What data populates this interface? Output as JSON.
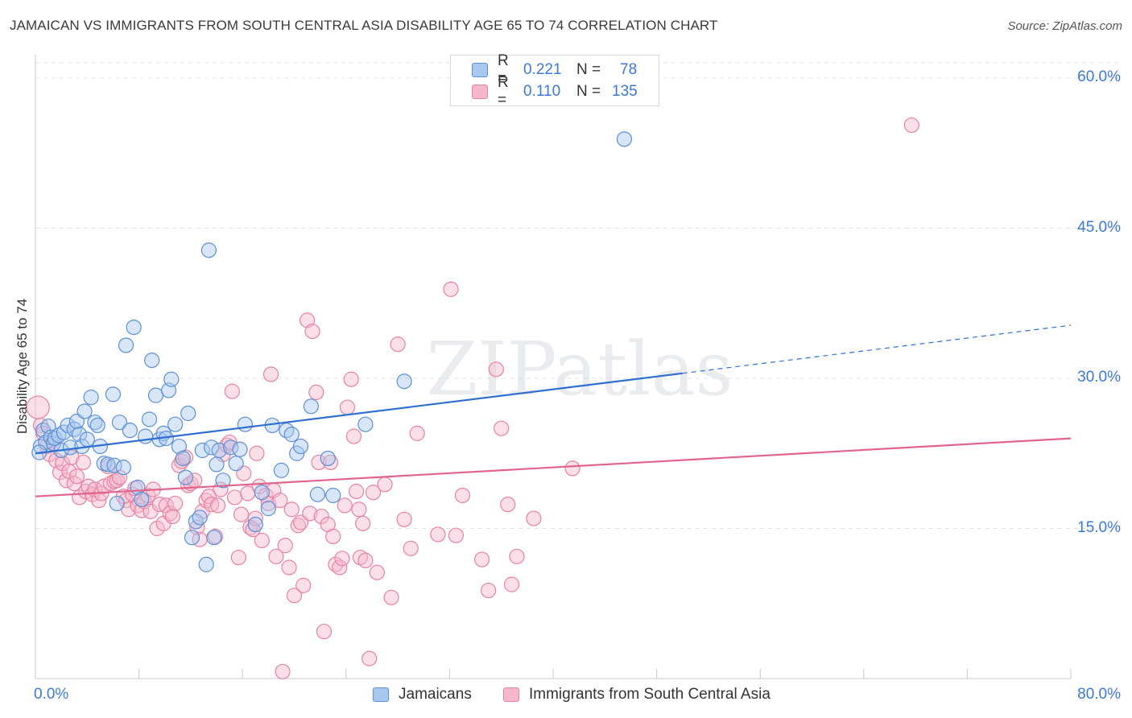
{
  "header": {
    "title": "JAMAICAN VS IMMIGRANTS FROM SOUTH CENTRAL ASIA DISABILITY AGE 65 TO 74 CORRELATION CHART",
    "source": "Source: ZipAtlas.com"
  },
  "watermark": "ZIPatlas",
  "legend": {
    "rows": [
      {
        "r_label": "R =",
        "r_value": "0.221",
        "n_label": "N =",
        "n_value": "78"
      },
      {
        "r_label": "R =",
        "r_value": "0.110",
        "n_label": "N =",
        "n_value": "135"
      }
    ]
  },
  "colors": {
    "blue_fill": "#a9c8f0",
    "blue_stroke": "#5b8fd6",
    "blue_line": "#2f6fd0",
    "pink_fill": "#f5b8cb",
    "pink_stroke": "#e8829f",
    "pink_line": "#e0648c",
    "tick_label": "#3c78d8",
    "grid": "#e3e3e3"
  },
  "chart_data": {
    "type": "scatter",
    "title": "JAMAICAN VS IMMIGRANTS FROM SOUTH CENTRAL ASIA DISABILITY AGE 65 TO 74 CORRELATION CHART",
    "xlabel": "",
    "ylabel": "Disability Age 65 to 74",
    "xlim": [
      0,
      80
    ],
    "ylim": [
      0,
      60
    ],
    "x_tick_labels": [
      "0.0%",
      "80.0%"
    ],
    "y_ticks": [
      15,
      30,
      45,
      60
    ],
    "y_tick_labels": [
      "15.0%",
      "30.0%",
      "45.0%",
      "60.0%"
    ],
    "grid": true,
    "legend_position": "top-center",
    "series": [
      {
        "name": "Jamaicans",
        "color": "#a9c8f0",
        "r": 0.221,
        "n": 78,
        "trend": {
          "x0": 0,
          "y0": 22.5,
          "x1": 50,
          "y1": 30.5,
          "dashed_to_x": 80,
          "dashed_to_y": 35.3
        },
        "points": [
          [
            0.4,
            23.2
          ],
          [
            0.6,
            24.8
          ],
          [
            0.8,
            23.6
          ],
          [
            1.0,
            25.2
          ],
          [
            1.2,
            24.1
          ],
          [
            1.4,
            23.5
          ],
          [
            1.5,
            24.0
          ],
          [
            1.8,
            24.3
          ],
          [
            2.0,
            22.8
          ],
          [
            2.2,
            24.6
          ],
          [
            2.5,
            25.3
          ],
          [
            2.7,
            23.1
          ],
          [
            3.0,
            24.9
          ],
          [
            3.2,
            25.7
          ],
          [
            3.4,
            24.4
          ],
          [
            3.6,
            23.2
          ],
          [
            3.8,
            26.7
          ],
          [
            4.0,
            23.9
          ],
          [
            4.3,
            28.1
          ],
          [
            4.6,
            25.6
          ],
          [
            4.8,
            25.3
          ],
          [
            5.0,
            23.2
          ],
          [
            5.3,
            21.5
          ],
          [
            5.6,
            21.4
          ],
          [
            6.0,
            28.4
          ],
          [
            6.1,
            21.3
          ],
          [
            6.3,
            17.5
          ],
          [
            6.5,
            25.6
          ],
          [
            6.8,
            21.1
          ],
          [
            7.0,
            33.3
          ],
          [
            7.3,
            24.8
          ],
          [
            7.6,
            35.1
          ],
          [
            7.9,
            19.1
          ],
          [
            8.2,
            17.9
          ],
          [
            8.5,
            24.2
          ],
          [
            8.8,
            25.9
          ],
          [
            9.0,
            31.8
          ],
          [
            9.3,
            28.3
          ],
          [
            9.6,
            23.9
          ],
          [
            9.9,
            24.5
          ],
          [
            10.1,
            24.0
          ],
          [
            10.3,
            28.8
          ],
          [
            10.5,
            29.9
          ],
          [
            10.8,
            25.4
          ],
          [
            11.1,
            23.2
          ],
          [
            11.4,
            22.0
          ],
          [
            11.6,
            20.1
          ],
          [
            11.8,
            26.5
          ],
          [
            12.1,
            14.1
          ],
          [
            12.4,
            15.7
          ],
          [
            12.7,
            16.1
          ],
          [
            12.9,
            22.8
          ],
          [
            13.2,
            11.4
          ],
          [
            13.4,
            42.8
          ],
          [
            13.6,
            23.1
          ],
          [
            13.8,
            14.1
          ],
          [
            14.0,
            21.4
          ],
          [
            14.2,
            22.8
          ],
          [
            14.5,
            19.8
          ],
          [
            15.1,
            23.1
          ],
          [
            15.5,
            21.5
          ],
          [
            15.8,
            22.9
          ],
          [
            16.2,
            25.4
          ],
          [
            17.0,
            15.4
          ],
          [
            17.5,
            18.6
          ],
          [
            18.0,
            17.0
          ],
          [
            18.3,
            25.3
          ],
          [
            19.0,
            20.8
          ],
          [
            19.4,
            24.8
          ],
          [
            19.8,
            24.4
          ],
          [
            20.2,
            22.5
          ],
          [
            20.5,
            23.2
          ],
          [
            21.3,
            27.2
          ],
          [
            21.8,
            18.4
          ],
          [
            22.6,
            22.0
          ],
          [
            23.0,
            18.3
          ],
          [
            25.5,
            25.4
          ],
          [
            28.5,
            29.7
          ],
          [
            45.5,
            53.9
          ],
          [
            0.3,
            22.6
          ]
        ]
      },
      {
        "name": "Immigrants from South Central Asia",
        "color": "#f5b8cb",
        "r": 0.11,
        "n": 135,
        "trend": {
          "x0": 0,
          "y0": 18.2,
          "x1": 80,
          "y1": 24.0
        },
        "points": [
          [
            0.2,
            27.1
          ],
          [
            0.4,
            25.3
          ],
          [
            0.6,
            24.5
          ],
          [
            0.9,
            23.2
          ],
          [
            1.1,
            22.4
          ],
          [
            1.4,
            23.5
          ],
          [
            1.6,
            21.8
          ],
          [
            1.9,
            20.6
          ],
          [
            2.1,
            21.5
          ],
          [
            2.4,
            19.8
          ],
          [
            2.6,
            20.7
          ],
          [
            2.8,
            22.1
          ],
          [
            3.0,
            19.5
          ],
          [
            3.2,
            20.2
          ],
          [
            3.4,
            18.1
          ],
          [
            3.7,
            21.6
          ],
          [
            3.9,
            18.7
          ],
          [
            4.1,
            19.2
          ],
          [
            4.4,
            18.4
          ],
          [
            4.6,
            18.9
          ],
          [
            4.9,
            17.8
          ],
          [
            5.1,
            18.5
          ],
          [
            5.3,
            19.2
          ],
          [
            5.6,
            21.2
          ],
          [
            5.8,
            19.5
          ],
          [
            6.1,
            19.7
          ],
          [
            6.3,
            19.8
          ],
          [
            6.5,
            20.1
          ],
          [
            6.8,
            18.2
          ],
          [
            7.0,
            17.8
          ],
          [
            7.2,
            16.9
          ],
          [
            7.5,
            18.4
          ],
          [
            7.7,
            19.0
          ],
          [
            7.9,
            17.3
          ],
          [
            8.2,
            16.8
          ],
          [
            8.4,
            17.7
          ],
          [
            8.7,
            18.3
          ],
          [
            8.9,
            16.7
          ],
          [
            9.1,
            18.9
          ],
          [
            9.4,
            15.0
          ],
          [
            9.6,
            17.4
          ],
          [
            9.9,
            15.5
          ],
          [
            10.1,
            17.3
          ],
          [
            10.4,
            16.5
          ],
          [
            10.6,
            16.2
          ],
          [
            10.8,
            17.5
          ],
          [
            11.1,
            21.3
          ],
          [
            11.3,
            21.7
          ],
          [
            11.6,
            22.1
          ],
          [
            11.8,
            19.3
          ],
          [
            12.0,
            19.5
          ],
          [
            12.3,
            19.8
          ],
          [
            12.5,
            15.1
          ],
          [
            12.7,
            13.9
          ],
          [
            12.9,
            16.7
          ],
          [
            13.2,
            17.8
          ],
          [
            13.4,
            18.2
          ],
          [
            13.6,
            17.4
          ],
          [
            13.9,
            14.2
          ],
          [
            14.1,
            17.3
          ],
          [
            14.3,
            18.9
          ],
          [
            14.5,
            22.4
          ],
          [
            14.8,
            23.3
          ],
          [
            15.0,
            23.6
          ],
          [
            15.2,
            28.7
          ],
          [
            15.4,
            18.1
          ],
          [
            15.7,
            12.1
          ],
          [
            15.9,
            16.4
          ],
          [
            16.1,
            20.5
          ],
          [
            16.4,
            18.5
          ],
          [
            16.6,
            15.1
          ],
          [
            16.8,
            14.9
          ],
          [
            17.1,
            22.5
          ],
          [
            17.3,
            19.2
          ],
          [
            17.5,
            13.8
          ],
          [
            17.8,
            18.3
          ],
          [
            18.0,
            17.5
          ],
          [
            18.2,
            30.4
          ],
          [
            18.4,
            18.8
          ],
          [
            18.6,
            12.2
          ],
          [
            18.9,
            17.8
          ],
          [
            19.1,
            0.7
          ],
          [
            19.3,
            13.3
          ],
          [
            19.6,
            11.1
          ],
          [
            19.8,
            16.9
          ],
          [
            20.0,
            8.3
          ],
          [
            20.3,
            15.3
          ],
          [
            20.5,
            15.6
          ],
          [
            20.7,
            9.3
          ],
          [
            21.0,
            35.8
          ],
          [
            21.2,
            16.5
          ],
          [
            21.4,
            34.7
          ],
          [
            21.7,
            28.6
          ],
          [
            21.9,
            21.6
          ],
          [
            22.1,
            16.2
          ],
          [
            22.3,
            4.7
          ],
          [
            22.6,
            15.4
          ],
          [
            22.8,
            21.6
          ],
          [
            23.0,
            14.2
          ],
          [
            23.2,
            11.4
          ],
          [
            23.5,
            11.1
          ],
          [
            23.7,
            12.0
          ],
          [
            23.9,
            17.3
          ],
          [
            24.1,
            27.1
          ],
          [
            24.4,
            29.9
          ],
          [
            24.6,
            24.2
          ],
          [
            24.8,
            18.7
          ],
          [
            25.1,
            12.1
          ],
          [
            25.3,
            15.5
          ],
          [
            25.5,
            11.8
          ],
          [
            25.8,
            2.0
          ],
          [
            26.1,
            18.6
          ],
          [
            26.4,
            10.6
          ],
          [
            27.0,
            19.4
          ],
          [
            27.5,
            8.1
          ],
          [
            28.0,
            33.4
          ],
          [
            28.5,
            15.9
          ],
          [
            29.0,
            13.0
          ],
          [
            29.5,
            24.5
          ],
          [
            31.1,
            14.4
          ],
          [
            32.1,
            38.9
          ],
          [
            32.5,
            14.3
          ],
          [
            33.0,
            18.3
          ],
          [
            34.5,
            11.9
          ],
          [
            35.0,
            8.8
          ],
          [
            35.6,
            30.9
          ],
          [
            36.0,
            25.0
          ],
          [
            36.5,
            17.4
          ],
          [
            36.8,
            9.4
          ],
          [
            37.2,
            12.2
          ],
          [
            38.5,
            16.0
          ],
          [
            41.5,
            21.0
          ],
          [
            67.7,
            55.3
          ],
          [
            17.0,
            16.0
          ],
          [
            25.0,
            16.9
          ]
        ]
      }
    ]
  }
}
